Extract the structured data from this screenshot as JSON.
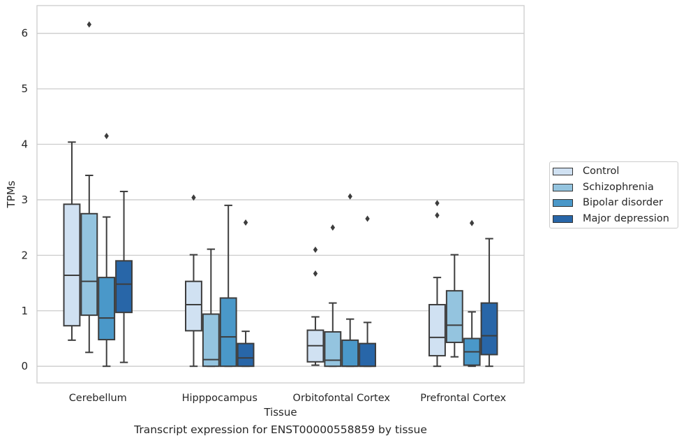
{
  "chart_data": {
    "type": "box",
    "caption": "Transcript expression for ENST00000558859 by tissue",
    "xlabel": "Tissue",
    "ylabel": "TPMs",
    "ylim": [
      -0.3,
      6.5
    ],
    "yticks": [
      0,
      1,
      2,
      3,
      4,
      5,
      6
    ],
    "grid": "horizontal",
    "legend_position": "right",
    "categories": [
      "Cerebellum",
      "Hipppocampus",
      "Orbitofontal Cortex",
      "Prefrontal Cortex"
    ],
    "series": [
      {
        "name": "Control",
        "color": "#d0e1f2",
        "boxes": [
          {
            "whislo": 0.47,
            "q1": 0.73,
            "med": 1.64,
            "q3": 2.92,
            "whishi": 4.04,
            "fliers": []
          },
          {
            "whislo": 0.0,
            "q1": 0.64,
            "med": 1.11,
            "q3": 1.53,
            "whishi": 2.01,
            "fliers": [
              3.04
            ]
          },
          {
            "whislo": 0.02,
            "q1": 0.08,
            "med": 0.37,
            "q3": 0.65,
            "whishi": 0.89,
            "fliers": [
              1.67,
              2.1
            ]
          },
          {
            "whislo": 0.0,
            "q1": 0.19,
            "med": 0.52,
            "q3": 1.11,
            "whishi": 1.6,
            "fliers": [
              2.72,
              2.94
            ]
          }
        ]
      },
      {
        "name": "Schizophrenia",
        "color": "#94c4df",
        "boxes": [
          {
            "whislo": 0.25,
            "q1": 0.92,
            "med": 1.53,
            "q3": 2.75,
            "whishi": 3.44,
            "fliers": [
              6.16
            ]
          },
          {
            "whislo": 0.0,
            "q1": 0.0,
            "med": 0.12,
            "q3": 0.94,
            "whishi": 2.11,
            "fliers": []
          },
          {
            "whislo": 0.0,
            "q1": 0.0,
            "med": 0.11,
            "q3": 0.62,
            "whishi": 1.14,
            "fliers": [
              2.5
            ]
          },
          {
            "whislo": 0.17,
            "q1": 0.43,
            "med": 0.74,
            "q3": 1.36,
            "whishi": 2.01,
            "fliers": []
          }
        ]
      },
      {
        "name": "Bipolar disorder",
        "color": "#4a98c9",
        "boxes": [
          {
            "whislo": 0.0,
            "q1": 0.48,
            "med": 0.87,
            "q3": 1.6,
            "whishi": 2.69,
            "fliers": [
              4.15
            ]
          },
          {
            "whislo": 0.0,
            "q1": 0.0,
            "med": 0.53,
            "q3": 1.23,
            "whishi": 2.9,
            "fliers": []
          },
          {
            "whislo": 0.0,
            "q1": 0.0,
            "med": 0.0,
            "q3": 0.47,
            "whishi": 0.85,
            "fliers": [
              3.06
            ]
          },
          {
            "whislo": 0.0,
            "q1": 0.02,
            "med": 0.26,
            "q3": 0.5,
            "whishi": 0.98,
            "fliers": [
              2.58
            ]
          }
        ]
      },
      {
        "name": "Major depression",
        "color": "#2866a8",
        "boxes": [
          {
            "whislo": 0.07,
            "q1": 0.97,
            "med": 1.48,
            "q3": 1.9,
            "whishi": 3.15,
            "fliers": []
          },
          {
            "whislo": 0.0,
            "q1": 0.0,
            "med": 0.15,
            "q3": 0.41,
            "whishi": 0.63,
            "fliers": [
              2.59
            ]
          },
          {
            "whislo": 0.0,
            "q1": 0.0,
            "med": 0.0,
            "q3": 0.41,
            "whishi": 0.79,
            "fliers": [
              2.66
            ]
          },
          {
            "whislo": 0.0,
            "q1": 0.21,
            "med": 0.55,
            "q3": 1.14,
            "whishi": 2.3,
            "fliers": []
          }
        ]
      }
    ]
  }
}
